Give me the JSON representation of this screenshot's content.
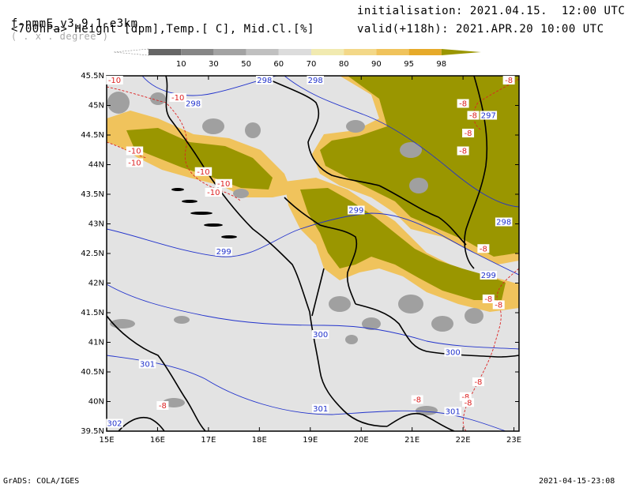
{
  "header": {
    "model": "f-nmmE_v3.9.1-e3km",
    "projection": "( . x . degree )",
    "initialisation": "initialisation: 2021.04.15.  12:00 UTC",
    "level_line": "<700hPa> Height [dpm],Temp.[ C], Mid.Cl.[%]",
    "valid": "valid(+118h): 2021.APR.20 10:00 UTC"
  },
  "colorbar": {
    "labels": [
      "10",
      "30",
      "50",
      "60",
      "70",
      "80",
      "90",
      "95",
      "98"
    ],
    "colors": [
      "#666666",
      "#868686",
      "#a3a3a3",
      "#c0c0c0",
      "#dcdcdc",
      "#f1eab0",
      "#f3d888",
      "#f0c35c",
      "#e6aa2a",
      "#9a9600"
    ]
  },
  "map": {
    "lat_ticks": [
      "45.5N",
      "45N",
      "44.5N",
      "44N",
      "43.5N",
      "43N",
      "42.5N",
      "42N",
      "41.5N",
      "41N",
      "40.5N",
      "40N",
      "39.5N"
    ],
    "lon_ticks": [
      "15E",
      "16E",
      "17E",
      "18E",
      "19E",
      "20E",
      "21E",
      "22E",
      "23E"
    ],
    "colors": {
      "background": "#e3e3e3",
      "cloud_full": "#9a9600",
      "cloud_edge": "#f0c35c",
      "cloud_light": "#f3e6a8",
      "cloud_grey": "#a0a0a0",
      "height_contour": "#2233cc",
      "temp_contour": "#dd2222",
      "coast": "#000000"
    },
    "height_labels": [
      {
        "text": "298",
        "lon": 18.1,
        "lat": 45.5
      },
      {
        "text": "298",
        "lon": 19.1,
        "lat": 45.5
      },
      {
        "text": "298",
        "lon": 16.7,
        "lat": 45.0
      },
      {
        "text": "299",
        "lon": 19.9,
        "lat": 43.2
      },
      {
        "text": "299",
        "lon": 17.3,
        "lat": 42.5
      },
      {
        "text": "298",
        "lon": 22.8,
        "lat": 43.0
      },
      {
        "text": "299",
        "lon": 22.5,
        "lat": 42.1
      },
      {
        "text": "300",
        "lon": 19.2,
        "lat": 41.1
      },
      {
        "text": "300",
        "lon": 21.8,
        "lat": 40.8
      },
      {
        "text": "301",
        "lon": 15.8,
        "lat": 40.6
      },
      {
        "text": "301",
        "lon": 19.2,
        "lat": 39.85
      },
      {
        "text": "301",
        "lon": 21.8,
        "lat": 39.8
      },
      {
        "text": "302",
        "lon": 15.1,
        "lat": 39.6
      },
      {
        "text": "297",
        "lon": 22.5,
        "lat": 44.8
      }
    ],
    "temp_labels": [
      {
        "text": "-10",
        "lon": 15.15,
        "lat": 45.45
      },
      {
        "text": "-10",
        "lon": 16.4,
        "lat": 45.1
      },
      {
        "text": "-10",
        "lon": 15.55,
        "lat": 44.2
      },
      {
        "text": "-10",
        "lon": 15.55,
        "lat": 44.0
      },
      {
        "text": "-10",
        "lon": 16.9,
        "lat": 43.85
      },
      {
        "text": "-10",
        "lon": 17.3,
        "lat": 43.65
      },
      {
        "text": "-10",
        "lon": 17.1,
        "lat": 43.5
      },
      {
        "text": "-8",
        "lon": 22.9,
        "lat": 45.45
      },
      {
        "text": "-8",
        "lon": 22.0,
        "lat": 45.0
      },
      {
        "text": "-8",
        "lon": 22.2,
        "lat": 44.8
      },
      {
        "text": "-8",
        "lon": 22.1,
        "lat": 44.5
      },
      {
        "text": "-8",
        "lon": 22.0,
        "lat": 44.2
      },
      {
        "text": "-8",
        "lon": 22.4,
        "lat": 42.55
      },
      {
        "text": "-8",
        "lon": 22.5,
        "lat": 41.7
      },
      {
        "text": "-8",
        "lon": 22.7,
        "lat": 41.6
      },
      {
        "text": "-8",
        "lon": 22.3,
        "lat": 40.3
      },
      {
        "text": "-8",
        "lon": 22.05,
        "lat": 40.05
      },
      {
        "text": "-8",
        "lon": 22.1,
        "lat": 39.95
      },
      {
        "text": "-8",
        "lon": 21.1,
        "lat": 40.0
      },
      {
        "text": "-8",
        "lon": 16.1,
        "lat": 39.9
      }
    ]
  },
  "footer": {
    "left": "GrADS: COLA/IGES",
    "right": "2021-04-15-23:08"
  }
}
